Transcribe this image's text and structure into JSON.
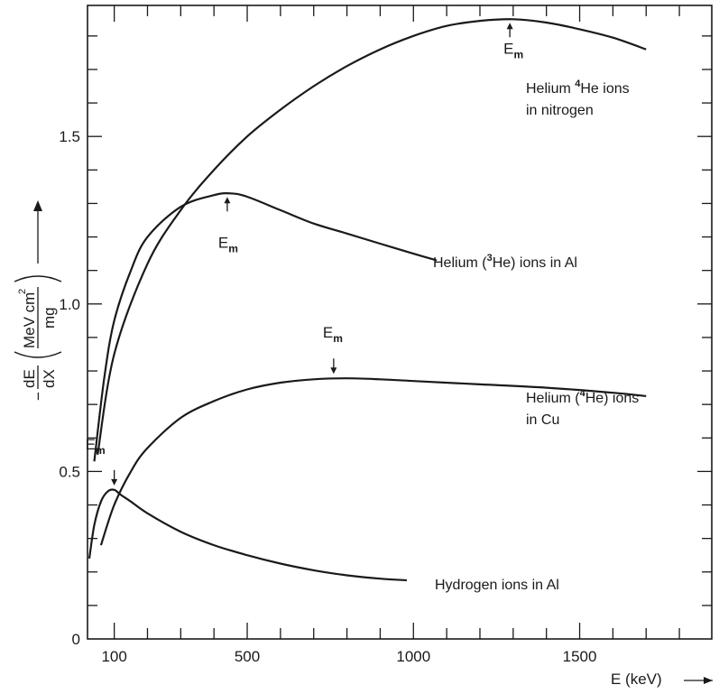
{
  "chart_data": {
    "type": "line",
    "title": "",
    "xlabel": "E (keV)",
    "xlim": [
      20,
      1880
    ],
    "ylim": [
      0,
      1.9
    ],
    "x_ticks": [
      100,
      500,
      1000,
      1500
    ],
    "y_ticks": [
      0,
      0.5,
      1.0,
      1.5
    ],
    "x_tick_labels": [
      "100",
      "500",
      "1000",
      "1500"
    ],
    "y_tick_labels": [
      "0",
      "0.5",
      "1.0",
      "1.5"
    ],
    "ylabel": {
      "prefix": "−",
      "frac_num": "dE",
      "frac_den": "dX",
      "unit_num": "MeV cm",
      "unit_sup": "2",
      "unit_den": "mg"
    },
    "grid": false,
    "em_label": {
      "main": "E",
      "sub": "m"
    },
    "series": [
      {
        "name": "Helium ⁴He ions in nitrogen",
        "label_lines": [
          {
            "pre": "Helium ",
            "sup": "4",
            "post": "He ions"
          },
          {
            "pre": "in nitrogen",
            "sup": "",
            "post": ""
          }
        ],
        "x": [
          50,
          100,
          200,
          300,
          400,
          500,
          600,
          700,
          800,
          900,
          1000,
          1100,
          1200,
          1300,
          1400,
          1500,
          1600,
          1700
        ],
        "y": [
          0.55,
          0.85,
          1.12,
          1.28,
          1.4,
          1.5,
          1.58,
          1.65,
          1.71,
          1.76,
          1.8,
          1.83,
          1.845,
          1.85,
          1.84,
          1.82,
          1.795,
          1.76
        ],
        "max_x": 1290,
        "max_y": 1.85
      },
      {
        "name": "Helium (³He) ions in Al",
        "label_lines": [
          {
            "pre": "Helium (",
            "sup": "3",
            "post": "He) ions in Al"
          }
        ],
        "x": [
          40,
          70,
          100,
          150,
          200,
          300,
          400,
          450,
          500,
          600,
          700,
          800,
          900,
          1000,
          1070
        ],
        "y": [
          0.53,
          0.78,
          0.95,
          1.1,
          1.2,
          1.29,
          1.325,
          1.33,
          1.32,
          1.28,
          1.24,
          1.21,
          1.18,
          1.15,
          1.13
        ],
        "max_x": 440,
        "max_y": 1.33
      },
      {
        "name": "Helium (⁴He) ions in Cu",
        "label_lines": [
          {
            "pre": "Helium (",
            "sup": "4",
            "post": "He) ions"
          },
          {
            "pre": "in Cu",
            "sup": "",
            "post": ""
          }
        ],
        "x": [
          60,
          100,
          150,
          200,
          300,
          400,
          500,
          600,
          700,
          800,
          900,
          1000,
          1200,
          1400,
          1600,
          1700
        ],
        "y": [
          0.28,
          0.4,
          0.5,
          0.57,
          0.66,
          0.71,
          0.745,
          0.765,
          0.775,
          0.778,
          0.775,
          0.77,
          0.76,
          0.75,
          0.735,
          0.725
        ],
        "max_x": 760,
        "max_y": 0.778
      },
      {
        "name": "Hydrogen ions in Al",
        "label_lines": [
          {
            "pre": "Hydrogen ions in Al",
            "sup": "",
            "post": ""
          }
        ],
        "x": [
          25,
          40,
          60,
          80,
          100,
          120,
          150,
          200,
          300,
          400,
          500,
          600,
          700,
          800,
          900,
          980
        ],
        "y": [
          0.24,
          0.34,
          0.41,
          0.44,
          0.445,
          0.43,
          0.41,
          0.375,
          0.32,
          0.28,
          0.25,
          0.225,
          0.205,
          0.19,
          0.18,
          0.175
        ],
        "max_x": 100,
        "max_y": 0.445
      }
    ]
  }
}
